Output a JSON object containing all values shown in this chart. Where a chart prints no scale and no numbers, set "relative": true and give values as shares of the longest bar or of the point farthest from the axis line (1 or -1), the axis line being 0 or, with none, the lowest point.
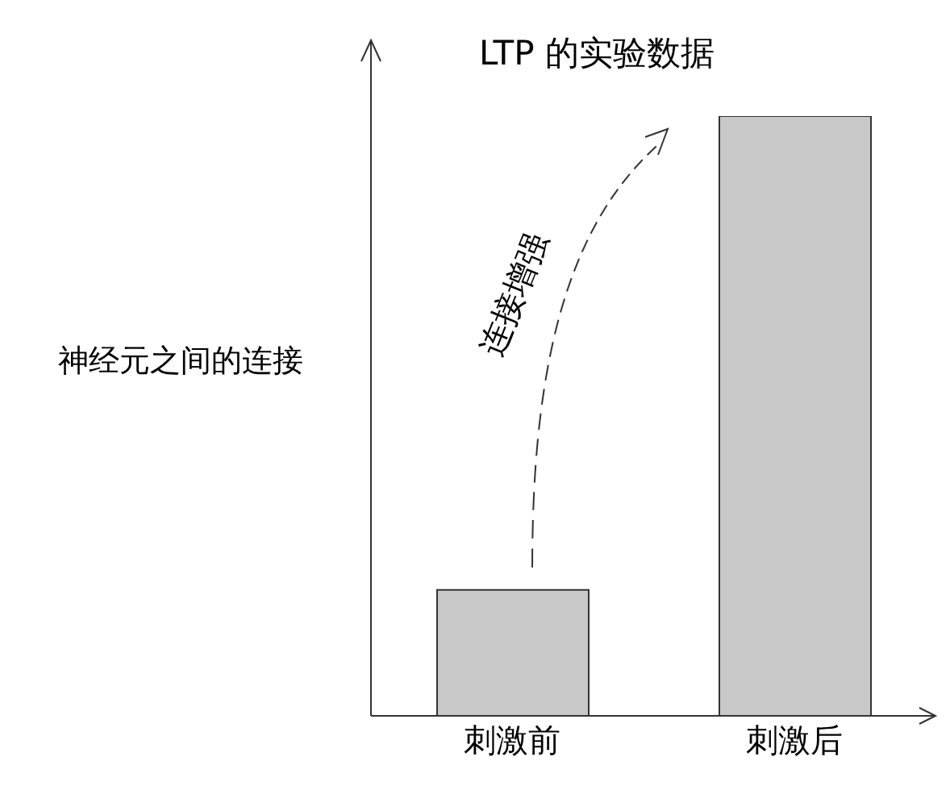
{
  "chart_data": {
    "type": "bar",
    "title": "LTP 的实验数据",
    "ylabel": "神经元之间的连接",
    "categories": [
      "刺激前",
      "刺激后"
    ],
    "values": [
      0.21,
      1
    ],
    "color": "#c8c8c8",
    "relative": true,
    "annotations": [
      "连接增强"
    ]
  }
}
